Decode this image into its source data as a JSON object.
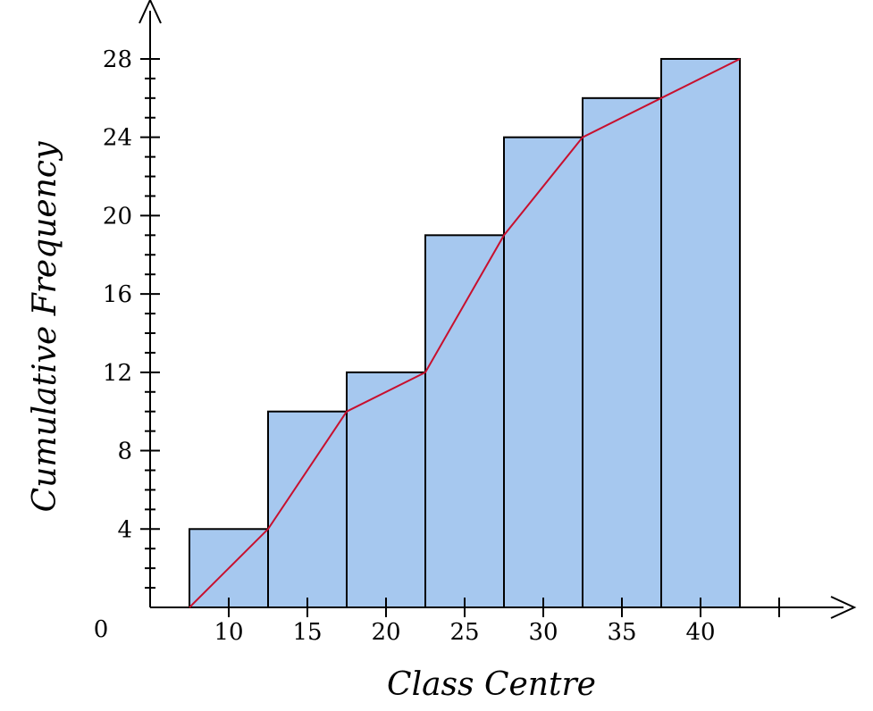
{
  "chart_data": {
    "type": "bar",
    "title": "",
    "xlabel": "Class Centre",
    "ylabel": "Cumulative Frequency",
    "origin_label": "0",
    "categories": [
      "10",
      "15",
      "20",
      "25",
      "30",
      "35",
      "40"
    ],
    "x": [
      10,
      15,
      20,
      25,
      30,
      35,
      40
    ],
    "class_width": 5,
    "values": [
      4,
      10,
      12,
      19,
      24,
      26,
      28
    ],
    "ylim": [
      0,
      28
    ],
    "xlim": [
      5,
      42.5
    ],
    "y_ticks": [
      4,
      8,
      12,
      16,
      20,
      24,
      28
    ],
    "y_minor_step": 1,
    "ogive": {
      "x": [
        7.5,
        12.5,
        17.5,
        22.5,
        27.5,
        32.5,
        37.5,
        42.5
      ],
      "y": [
        0,
        4,
        10,
        12,
        19,
        24,
        26,
        28
      ]
    },
    "colors": {
      "bar": "#a6c8ef",
      "line": "#c8102e",
      "axis": "#000000"
    },
    "grid": false,
    "legend": "none"
  }
}
